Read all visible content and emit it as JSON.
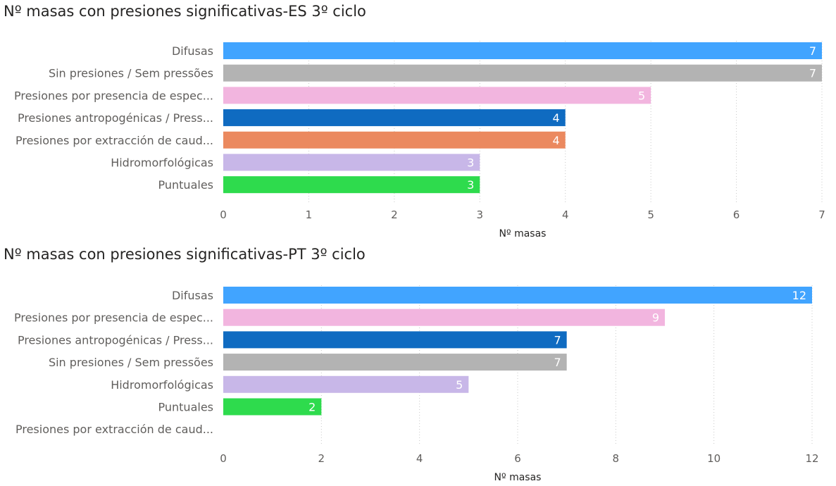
{
  "chart_data": [
    {
      "type": "bar",
      "orientation": "horizontal",
      "title": "Nº masas con presiones significativas-ES 3º ciclo",
      "xlabel": "Nº masas",
      "xlim": [
        0,
        7
      ],
      "xticks": [
        "0",
        "1",
        "2",
        "3",
        "4",
        "5",
        "6",
        "7"
      ],
      "grid": true,
      "categories": [
        "Difusas",
        "Sin presiones / Sem pressões",
        "Presiones por presencia de espec...",
        "Presiones antropogénicas / Press...",
        "Presiones por extracción de caud...",
        "Hidromorfológicas",
        "Puntuales"
      ],
      "values": [
        7,
        7,
        5,
        4,
        4,
        3,
        3
      ],
      "colors": [
        "#41A4FF",
        "#B3B3B3",
        "#F2B5DF",
        "#0F6BC1",
        "#EB895F",
        "#C8B7E8",
        "#2EDB4D"
      ],
      "label_colors": [
        "#ffffff",
        "#ffffff",
        "#ffffff",
        "#ffffff",
        "#ffffff",
        "#ffffff",
        "#ffffff"
      ]
    },
    {
      "type": "bar",
      "orientation": "horizontal",
      "title": "Nº masas con presiones significativas-PT 3º ciclo",
      "xlabel": "Nº masas",
      "xlim": [
        0,
        12
      ],
      "xticks": [
        "0",
        "2",
        "4",
        "6",
        "8",
        "10",
        "12"
      ],
      "grid": true,
      "categories": [
        "Difusas",
        "Presiones por presencia de espec...",
        "Presiones antropogénicas / Press...",
        "Sin presiones / Sem pressões",
        "Hidromorfológicas",
        "Puntuales",
        "Presiones por extracción de caud..."
      ],
      "values": [
        12,
        9,
        7,
        7,
        5,
        2,
        null
      ],
      "colors": [
        "#41A4FF",
        "#F2B5DF",
        "#0F6BC1",
        "#B3B3B3",
        "#C8B7E8",
        "#2EDB4D",
        "#EB895F"
      ],
      "label_colors": [
        "#ffffff",
        "#ffffff",
        "#ffffff",
        "#ffffff",
        "#ffffff",
        "#ffffff",
        "#ffffff"
      ]
    }
  ]
}
